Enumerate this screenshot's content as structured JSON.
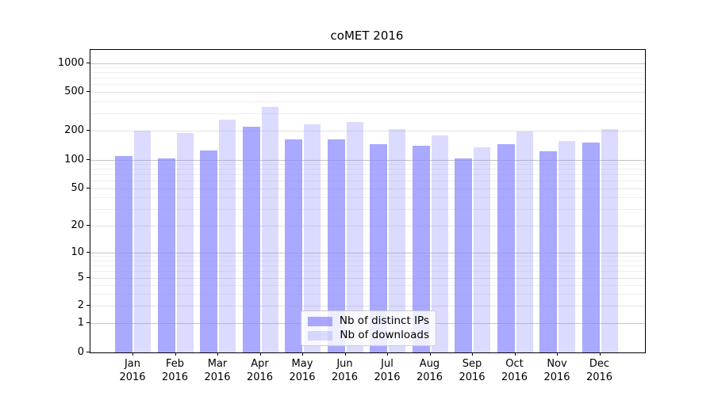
{
  "title": "coMET 2016",
  "chart_data": {
    "type": "bar",
    "title": "coMET 2016",
    "categories": [
      {
        "month": "Jan",
        "year": "2016"
      },
      {
        "month": "Feb",
        "year": "2016"
      },
      {
        "month": "Mar",
        "year": "2016"
      },
      {
        "month": "Apr",
        "year": "2016"
      },
      {
        "month": "May",
        "year": "2016"
      },
      {
        "month": "Jun",
        "year": "2016"
      },
      {
        "month": "Jul",
        "year": "2016"
      },
      {
        "month": "Aug",
        "year": "2016"
      },
      {
        "month": "Sep",
        "year": "2016"
      },
      {
        "month": "Oct",
        "year": "2016"
      },
      {
        "month": "Nov",
        "year": "2016"
      },
      {
        "month": "Dec",
        "year": "2016"
      }
    ],
    "series": [
      {
        "name": "Nb of distinct IPs",
        "color": "#8888ff",
        "alpha": 0.72,
        "rendered_color": "#ababff",
        "values": [
          110,
          103,
          125,
          220,
          162,
          162,
          145,
          140,
          103,
          145,
          124,
          150
        ]
      },
      {
        "name": "Nb of downloads",
        "color": "#8888ff",
        "alpha": 0.3,
        "rendered_color": "#dbdbff",
        "values": [
          200,
          190,
          262,
          350,
          232,
          247,
          207,
          178,
          135,
          198,
          158,
          207
        ]
      }
    ],
    "yticks": [
      0,
      1,
      2,
      5,
      10,
      20,
      50,
      100,
      200,
      500,
      1000
    ],
    "ytick_labels": [
      "0",
      "1",
      "2",
      "5",
      "10",
      "20",
      "50",
      "100",
      "200",
      "500",
      "1000"
    ],
    "yscale": "symlog",
    "ylim": [
      0,
      1400
    ],
    "xlabel": "",
    "ylabel": "",
    "grid": true,
    "legend_position": "lower center",
    "gridline_major_color": "#c6c6c6",
    "gridline_sub_color": "#e3e3e3",
    "gridline_minor_color": "#efefef"
  }
}
